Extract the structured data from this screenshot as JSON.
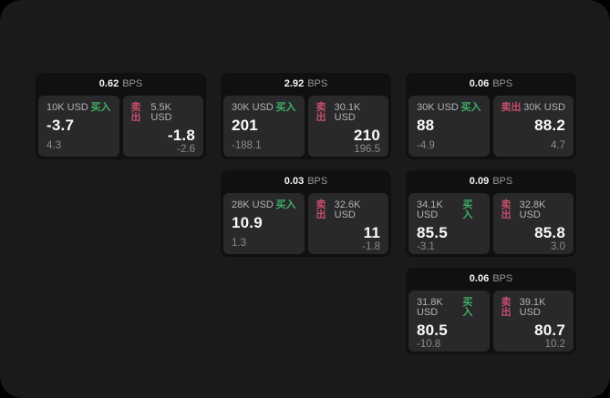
{
  "labels": {
    "buy": "买入",
    "sell": "卖出",
    "bps_suffix": "BPS"
  },
  "colors": {
    "buy_green": "#3fae63",
    "sell_red": "#c44e6a",
    "canvas_bg": "#1a1a1b",
    "card_bg": "#101011",
    "panel_bg": "#29292c"
  },
  "cards": [
    {
      "col": 1,
      "row": 1,
      "bps": "0.62",
      "buy": {
        "amount": "10K USD",
        "price": "-3.7",
        "change": "4.3"
      },
      "sell": {
        "amount": "5.5K USD",
        "price": "-1.8",
        "change": "-2.6"
      }
    },
    {
      "col": 2,
      "row": 1,
      "bps": "2.92",
      "buy": {
        "amount": "30K USD",
        "price": "201",
        "change": "-188.1"
      },
      "sell": {
        "amount": "30.1K USD",
        "price": "210",
        "change": "196.5"
      }
    },
    {
      "col": 3,
      "row": 1,
      "bps": "0.06",
      "buy": {
        "amount": "30K USD",
        "price": "88",
        "change": "-4.9"
      },
      "sell": {
        "amount": "30K USD",
        "price": "88.2",
        "change": "4.7"
      }
    },
    {
      "col": 2,
      "row": 2,
      "bps": "0.03",
      "buy": {
        "amount": "28K USD",
        "price": "10.9",
        "change": "1.3"
      },
      "sell": {
        "amount": "32.6K USD",
        "price": "11",
        "change": "-1.8"
      }
    },
    {
      "col": 3,
      "row": 2,
      "bps": "0.09",
      "buy": {
        "amount": "34.1K USD",
        "price": "85.5",
        "change": "-3.1"
      },
      "sell": {
        "amount": "32.8K USD",
        "price": "85.8",
        "change": "3.0"
      }
    },
    {
      "col": 3,
      "row": 3,
      "bps": "0.06",
      "buy": {
        "amount": "31.8K USD",
        "price": "80.5",
        "change": "-10.8"
      },
      "sell": {
        "amount": "39.1K USD",
        "price": "80.7",
        "change": "10.2"
      }
    }
  ]
}
